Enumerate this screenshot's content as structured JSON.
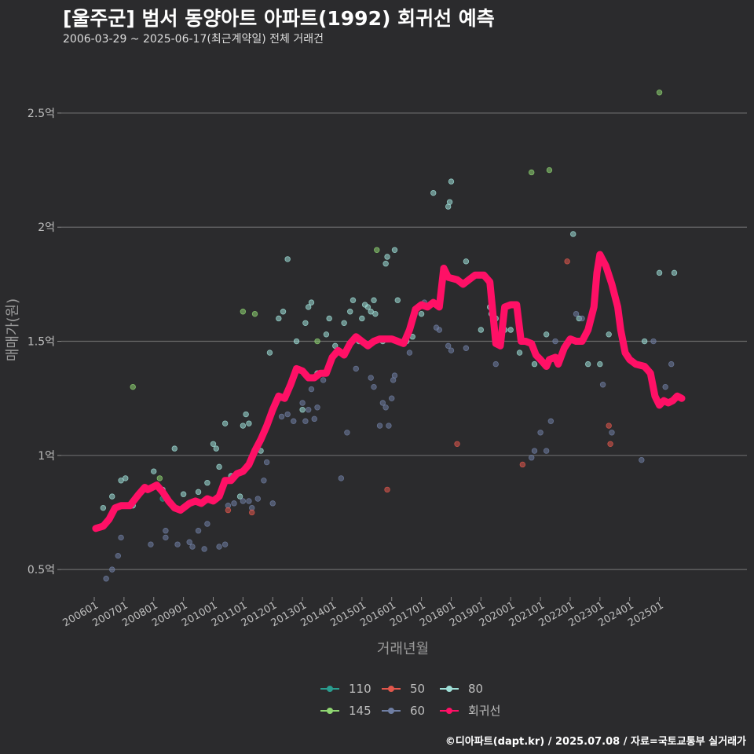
{
  "header": {
    "title": "[울주군] 범서 동양아트 아파트(1992) 회귀선 예측",
    "subtitle": "2006-03-29 ~ 2025-06-17(최근계약일) 전체 거래건"
  },
  "footer": {
    "caption": "©디아파트(dapt.kr) / 2025.07.08 / 자료=국토교통부 실거래가"
  },
  "chart_data": {
    "type": "scatter",
    "title": "[울주군] 범서 동양아트 아파트(1992) 회귀선 예측",
    "xlabel": "거래년월",
    "ylabel": "매매가(원)",
    "x_domain": [
      2006.0,
      2025.83
    ],
    "ylim": [
      0.38,
      2.72
    ],
    "y_ticks": [
      0.5,
      1.0,
      1.5,
      2.0,
      2.5
    ],
    "y_tick_labels": [
      "0.5억",
      "1억",
      "1.5억",
      "2억",
      "2.5억"
    ],
    "x_ticks": [
      2006,
      2007,
      2008,
      2009,
      2010,
      2011,
      2012,
      2013,
      2014,
      2015,
      2016,
      2017,
      2018,
      2019,
      2020,
      2021,
      2022,
      2023,
      2024,
      2025
    ],
    "x_tick_labels": [
      "200601",
      "200701",
      "200801",
      "200901",
      "201001",
      "201101",
      "201201",
      "201301",
      "201401",
      "201501",
      "201601",
      "201701",
      "201801",
      "201901",
      "202001",
      "202101",
      "202201",
      "202301",
      "202401",
      "202501"
    ],
    "colors": {
      "110": "#2a9d8f",
      "50": "#e2574c",
      "80": "#9fe0d8",
      "145": "#8fd672",
      "60": "#6f7ea3",
      "회귀선": "#ff1066"
    },
    "legend": {
      "row1": [
        {
          "key": "110",
          "label": "110"
        },
        {
          "key": "50",
          "label": "50"
        },
        {
          "key": "80",
          "label": "80"
        }
      ],
      "row2": [
        {
          "key": "145",
          "label": "145"
        },
        {
          "key": "60",
          "label": "60"
        },
        {
          "key": "회귀선",
          "label": "회귀선"
        }
      ]
    },
    "series": [
      {
        "name": "80",
        "points": [
          [
            2006.3,
            0.77
          ],
          [
            2006.6,
            0.82
          ],
          [
            2006.9,
            0.89
          ],
          [
            2007.05,
            0.9
          ],
          [
            2007.3,
            0.78
          ],
          [
            2007.7,
            0.85
          ],
          [
            2008.0,
            0.93
          ],
          [
            2008.3,
            0.85
          ],
          [
            2008.7,
            1.03
          ],
          [
            2009.0,
            0.83
          ],
          [
            2009.5,
            0.84
          ],
          [
            2009.8,
            0.88
          ],
          [
            2010.0,
            1.05
          ],
          [
            2010.1,
            1.03
          ],
          [
            2010.2,
            0.95
          ],
          [
            2010.4,
            1.14
          ],
          [
            2010.6,
            0.91
          ],
          [
            2010.9,
            0.82
          ],
          [
            2011.0,
            1.13
          ],
          [
            2011.1,
            1.18
          ],
          [
            2011.2,
            1.14
          ],
          [
            2011.6,
            1.02
          ],
          [
            2011.9,
            1.45
          ],
          [
            2012.2,
            1.6
          ],
          [
            2012.35,
            1.63
          ],
          [
            2012.5,
            1.86
          ],
          [
            2012.8,
            1.5
          ],
          [
            2013.0,
            1.2
          ],
          [
            2013.1,
            1.58
          ],
          [
            2013.2,
            1.65
          ],
          [
            2013.3,
            1.67
          ],
          [
            2013.5,
            1.36
          ],
          [
            2013.8,
            1.53
          ],
          [
            2013.9,
            1.6
          ],
          [
            2014.1,
            1.48
          ],
          [
            2014.4,
            1.58
          ],
          [
            2014.6,
            1.63
          ],
          [
            2014.7,
            1.68
          ],
          [
            2014.9,
            1.5
          ],
          [
            2015.0,
            1.6
          ],
          [
            2015.1,
            1.66
          ],
          [
            2015.2,
            1.65
          ],
          [
            2015.3,
            1.63
          ],
          [
            2015.4,
            1.68
          ],
          [
            2015.45,
            1.62
          ],
          [
            2015.7,
            1.5
          ],
          [
            2015.8,
            1.84
          ],
          [
            2015.85,
            1.87
          ],
          [
            2016.1,
            1.9
          ],
          [
            2016.2,
            1.68
          ],
          [
            2016.5,
            1.5
          ],
          [
            2016.7,
            1.52
          ],
          [
            2017.0,
            1.62
          ],
          [
            2017.4,
            2.15
          ],
          [
            2017.9,
            2.09
          ],
          [
            2017.95,
            2.11
          ],
          [
            2018.0,
            2.2
          ],
          [
            2018.5,
            1.85
          ],
          [
            2019.0,
            1.55
          ],
          [
            2019.3,
            1.65
          ],
          [
            2019.35,
            1.62
          ],
          [
            2019.5,
            1.6
          ],
          [
            2019.8,
            1.55
          ],
          [
            2020.0,
            1.55
          ],
          [
            2020.3,
            1.45
          ],
          [
            2020.8,
            1.4
          ],
          [
            2021.2,
            1.53
          ],
          [
            2022.1,
            1.97
          ],
          [
            2022.3,
            1.6
          ],
          [
            2022.6,
            1.4
          ],
          [
            2023.0,
            1.4
          ],
          [
            2023.3,
            1.53
          ],
          [
            2024.5,
            1.5
          ],
          [
            2025.0,
            1.8
          ],
          [
            2025.5,
            1.8
          ]
        ]
      },
      {
        "name": "145",
        "points": [
          [
            2007.3,
            1.3
          ],
          [
            2008.2,
            0.9
          ],
          [
            2011.0,
            1.63
          ],
          [
            2011.4,
            1.62
          ],
          [
            2013.5,
            1.5
          ],
          [
            2015.5,
            1.9
          ],
          [
            2020.7,
            2.24
          ],
          [
            2021.3,
            2.25
          ],
          [
            2025.0,
            2.59
          ]
        ]
      },
      {
        "name": "60",
        "points": [
          [
            2006.4,
            0.46
          ],
          [
            2006.6,
            0.5
          ],
          [
            2006.8,
            0.56
          ],
          [
            2006.9,
            0.64
          ],
          [
            2007.9,
            0.61
          ],
          [
            2008.4,
            0.64
          ],
          [
            2008.4,
            0.67
          ],
          [
            2008.8,
            0.61
          ],
          [
            2009.2,
            0.62
          ],
          [
            2009.3,
            0.6
          ],
          [
            2009.5,
            0.67
          ],
          [
            2009.7,
            0.59
          ],
          [
            2009.8,
            0.7
          ],
          [
            2010.2,
            0.6
          ],
          [
            2010.4,
            0.61
          ],
          [
            2010.5,
            0.78
          ],
          [
            2010.7,
            0.79
          ],
          [
            2011.0,
            0.8
          ],
          [
            2011.2,
            0.8
          ],
          [
            2011.3,
            0.77
          ],
          [
            2011.5,
            0.81
          ],
          [
            2011.7,
            0.89
          ],
          [
            2011.8,
            0.97
          ],
          [
            2012.0,
            0.79
          ],
          [
            2012.3,
            1.17
          ],
          [
            2012.5,
            1.18
          ],
          [
            2012.7,
            1.15
          ],
          [
            2013.0,
            1.23
          ],
          [
            2013.1,
            1.15
          ],
          [
            2013.2,
            1.2
          ],
          [
            2013.3,
            1.29
          ],
          [
            2013.4,
            1.16
          ],
          [
            2013.5,
            1.21
          ],
          [
            2013.7,
            1.33
          ],
          [
            2014.3,
            0.9
          ],
          [
            2014.5,
            1.1
          ],
          [
            2014.8,
            1.38
          ],
          [
            2015.3,
            1.34
          ],
          [
            2015.4,
            1.3
          ],
          [
            2015.6,
            1.13
          ],
          [
            2015.7,
            1.23
          ],
          [
            2015.8,
            1.21
          ],
          [
            2015.9,
            1.13
          ],
          [
            2016.0,
            1.25
          ],
          [
            2016.05,
            1.33
          ],
          [
            2016.1,
            1.35
          ],
          [
            2016.6,
            1.45
          ],
          [
            2017.1,
            1.67
          ],
          [
            2017.5,
            1.56
          ],
          [
            2017.6,
            1.55
          ],
          [
            2017.9,
            1.48
          ],
          [
            2018.0,
            1.46
          ],
          [
            2018.5,
            1.47
          ],
          [
            2019.5,
            1.4
          ],
          [
            2020.7,
            0.99
          ],
          [
            2020.8,
            1.02
          ],
          [
            2021.0,
            1.1
          ],
          [
            2021.2,
            1.02
          ],
          [
            2021.35,
            1.15
          ],
          [
            2021.5,
            1.5
          ],
          [
            2022.2,
            1.62
          ],
          [
            2022.4,
            1.6
          ],
          [
            2023.1,
            1.31
          ],
          [
            2023.4,
            1.1
          ],
          [
            2024.4,
            0.98
          ],
          [
            2024.8,
            1.5
          ],
          [
            2025.2,
            1.3
          ],
          [
            2025.4,
            1.4
          ]
        ]
      },
      {
        "name": "50",
        "points": [
          [
            2010.5,
            0.76
          ],
          [
            2011.3,
            0.75
          ],
          [
            2015.85,
            0.85
          ],
          [
            2018.2,
            1.05
          ],
          [
            2020.4,
            0.96
          ],
          [
            2021.9,
            1.85
          ],
          [
            2023.3,
            1.13
          ],
          [
            2023.35,
            1.05
          ]
        ]
      },
      {
        "name": "110",
        "points": [
          [
            2008.3,
            0.81
          ],
          [
            2016.2,
            1.5
          ]
        ]
      }
    ],
    "regression": {
      "name": "회귀선",
      "points": [
        [
          2006.05,
          0.68
        ],
        [
          2006.3,
          0.69
        ],
        [
          2006.5,
          0.72
        ],
        [
          2006.7,
          0.77
        ],
        [
          2006.9,
          0.78
        ],
        [
          2007.2,
          0.78
        ],
        [
          2007.5,
          0.83
        ],
        [
          2007.7,
          0.86
        ],
        [
          2007.8,
          0.85
        ],
        [
          2008.1,
          0.87
        ],
        [
          2008.3,
          0.84
        ],
        [
          2008.5,
          0.8
        ],
        [
          2008.7,
          0.77
        ],
        [
          2008.9,
          0.76
        ],
        [
          2009.2,
          0.79
        ],
        [
          2009.4,
          0.8
        ],
        [
          2009.6,
          0.79
        ],
        [
          2009.8,
          0.81
        ],
        [
          2010.0,
          0.8
        ],
        [
          2010.2,
          0.82
        ],
        [
          2010.4,
          0.89
        ],
        [
          2010.6,
          0.89
        ],
        [
          2010.8,
          0.92
        ],
        [
          2011.0,
          0.93
        ],
        [
          2011.2,
          0.96
        ],
        [
          2011.4,
          1.02
        ],
        [
          2011.6,
          1.07
        ],
        [
          2011.8,
          1.13
        ],
        [
          2012.0,
          1.2
        ],
        [
          2012.2,
          1.26
        ],
        [
          2012.4,
          1.25
        ],
        [
          2012.6,
          1.31
        ],
        [
          2012.8,
          1.38
        ],
        [
          2013.0,
          1.37
        ],
        [
          2013.2,
          1.34
        ],
        [
          2013.4,
          1.34
        ],
        [
          2013.6,
          1.36
        ],
        [
          2013.8,
          1.36
        ],
        [
          2014.0,
          1.43
        ],
        [
          2014.2,
          1.46
        ],
        [
          2014.4,
          1.44
        ],
        [
          2014.6,
          1.49
        ],
        [
          2014.8,
          1.52
        ],
        [
          2015.0,
          1.5
        ],
        [
          2015.2,
          1.48
        ],
        [
          2015.4,
          1.5
        ],
        [
          2015.6,
          1.51
        ],
        [
          2015.8,
          1.51
        ],
        [
          2016.0,
          1.51
        ],
        [
          2016.2,
          1.5
        ],
        [
          2016.4,
          1.49
        ],
        [
          2016.6,
          1.55
        ],
        [
          2016.8,
          1.64
        ],
        [
          2017.0,
          1.66
        ],
        [
          2017.2,
          1.65
        ],
        [
          2017.4,
          1.67
        ],
        [
          2017.6,
          1.65
        ],
        [
          2017.75,
          1.82
        ],
        [
          2017.9,
          1.78
        ],
        [
          2018.2,
          1.77
        ],
        [
          2018.4,
          1.75
        ],
        [
          2018.6,
          1.77
        ],
        [
          2018.8,
          1.79
        ],
        [
          2019.1,
          1.79
        ],
        [
          2019.3,
          1.76
        ],
        [
          2019.5,
          1.49
        ],
        [
          2019.65,
          1.48
        ],
        [
          2019.8,
          1.65
        ],
        [
          2020.0,
          1.66
        ],
        [
          2020.2,
          1.66
        ],
        [
          2020.35,
          1.5
        ],
        [
          2020.5,
          1.5
        ],
        [
          2020.7,
          1.49
        ],
        [
          2020.85,
          1.44
        ],
        [
          2021.0,
          1.42
        ],
        [
          2021.2,
          1.39
        ],
        [
          2021.3,
          1.42
        ],
        [
          2021.5,
          1.43
        ],
        [
          2021.6,
          1.4
        ],
        [
          2021.8,
          1.47
        ],
        [
          2022.0,
          1.51
        ],
        [
          2022.2,
          1.5
        ],
        [
          2022.4,
          1.5
        ],
        [
          2022.6,
          1.55
        ],
        [
          2022.8,
          1.65
        ],
        [
          2022.9,
          1.8
        ],
        [
          2023.0,
          1.88
        ],
        [
          2023.2,
          1.83
        ],
        [
          2023.4,
          1.75
        ],
        [
          2023.6,
          1.65
        ],
        [
          2023.7,
          1.55
        ],
        [
          2023.85,
          1.45
        ],
        [
          2024.0,
          1.42
        ],
        [
          2024.2,
          1.4
        ],
        [
          2024.5,
          1.39
        ],
        [
          2024.7,
          1.36
        ],
        [
          2024.85,
          1.26
        ],
        [
          2025.0,
          1.22
        ],
        [
          2025.15,
          1.24
        ],
        [
          2025.3,
          1.23
        ],
        [
          2025.45,
          1.24
        ],
        [
          2025.6,
          1.26
        ],
        [
          2025.75,
          1.25
        ]
      ]
    }
  }
}
